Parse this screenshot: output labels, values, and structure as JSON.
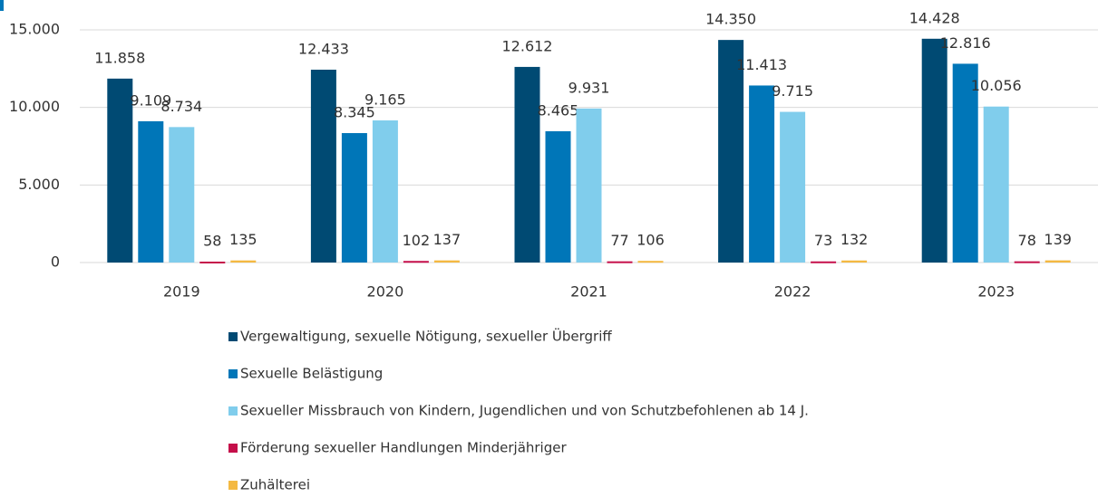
{
  "chart_data": {
    "type": "bar",
    "categories": [
      "2019",
      "2020",
      "2021",
      "2022",
      "2023"
    ],
    "series": [
      {
        "name": "Vergewaltigung, sexuelle Nötigung, sexueller Übergriff",
        "color": "#004a73",
        "values": [
          11858,
          12433,
          12612,
          14350,
          14428
        ],
        "value_labels": [
          "11.858",
          "12.433",
          "12.612",
          "14.350",
          "14.428"
        ]
      },
      {
        "name": "Sexuelle Belästigung",
        "color": "#0076b8",
        "values": [
          9109,
          8345,
          8465,
          11413,
          12816
        ],
        "value_labels": [
          "9.109",
          "8.345",
          "8.465",
          "11.413",
          "12.816"
        ]
      },
      {
        "name": "Sexueller Missbrauch von Kindern, Jugendlichen und von Schutzbefohlenen ab 14 J.",
        "color": "#80cdec",
        "values": [
          8734,
          9165,
          9931,
          9715,
          10056
        ],
        "value_labels": [
          "8.734",
          "9.165",
          "9.931",
          "9.715",
          "10.056"
        ]
      },
      {
        "name": "Förderung sexueller Handlungen Minderjähriger",
        "color": "#c50f4a",
        "values": [
          58,
          102,
          77,
          73,
          78
        ]
      },
      {
        "name": "Zuhälterei",
        "color": "#f4b942",
        "values": [
          135,
          137,
          106,
          132,
          139
        ]
      }
    ],
    "ylim": [
      0,
      15000
    ],
    "yticks": [
      0,
      {
        "value": 5000,
        "label": "5.000"
      },
      {
        "value": 10000,
        "label": "10.000"
      },
      {
        "value": 15000,
        "label": "15.000"
      }
    ],
    "grid": true,
    "legend": "bottom"
  }
}
